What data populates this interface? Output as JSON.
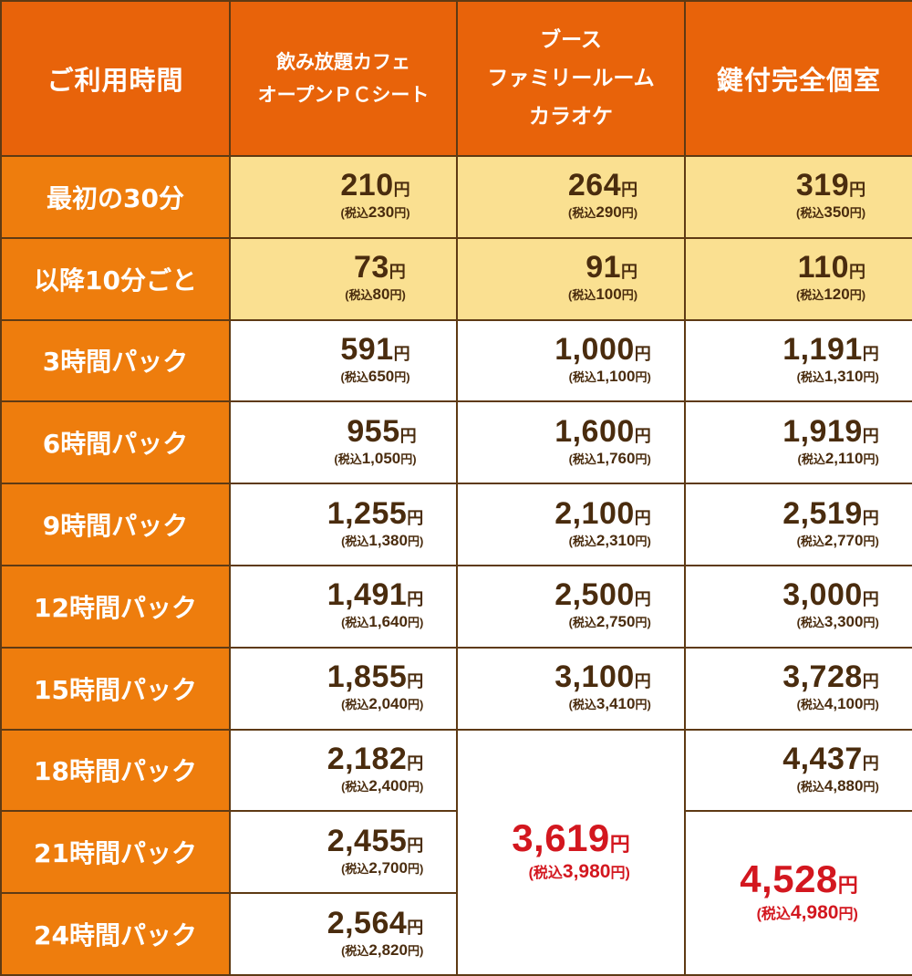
{
  "headers": {
    "time": "ご利用時間",
    "col1": [
      "飲み放題カフェ",
      "オープンＰＣシート"
    ],
    "col2": [
      "ブース",
      "ファミリールーム",
      "カラオケ"
    ],
    "col3": "鍵付完全個室"
  },
  "yen": "円",
  "tax_prefix": "(税込",
  "tax_suffix": "円)",
  "rows": [
    {
      "label": "最初の30分",
      "c1": [
        "210",
        "230"
      ],
      "c2": [
        "264",
        "290"
      ],
      "c3": [
        "319",
        "350"
      ]
    },
    {
      "label": "以降10分ごと",
      "c1": [
        "73",
        "80"
      ],
      "c2": [
        "91",
        "100"
      ],
      "c3": [
        "110",
        "120"
      ]
    },
    {
      "label": "3時間パック",
      "c1": [
        "591",
        "650"
      ],
      "c2": [
        "1,000",
        "1,100"
      ],
      "c3": [
        "1,191",
        "1,310"
      ]
    },
    {
      "label": "6時間パック",
      "c1": [
        "955",
        "1,050"
      ],
      "c2": [
        "1,600",
        "1,760"
      ],
      "c3": [
        "1,919",
        "2,110"
      ]
    },
    {
      "label": "9時間パック",
      "c1": [
        "1,255",
        "1,380"
      ],
      "c2": [
        "2,100",
        "2,310"
      ],
      "c3": [
        "2,519",
        "2,770"
      ]
    },
    {
      "label": "12時間パック",
      "c1": [
        "1,491",
        "1,640"
      ],
      "c2": [
        "2,500",
        "2,750"
      ],
      "c3": [
        "3,000",
        "3,300"
      ]
    },
    {
      "label": "15時間パック",
      "c1": [
        "1,855",
        "2,040"
      ],
      "c2": [
        "3,100",
        "3,410"
      ],
      "c3": [
        "3,728",
        "4,100"
      ]
    },
    {
      "label": "18時間パック",
      "c1": [
        "2,182",
        "2,400"
      ],
      "c3": [
        "4,437",
        "4,880"
      ]
    },
    {
      "label": "21時間パック",
      "c1": [
        "2,455",
        "2,700"
      ]
    },
    {
      "label": "24時間パック",
      "c1": [
        "2,564",
        "2,820"
      ]
    }
  ],
  "merged": {
    "booth_18_24": [
      "3,619",
      "3,980"
    ],
    "private_21_24": [
      "4,528",
      "4,980"
    ]
  },
  "colors": {
    "header": "#e8630a",
    "row_label": "#ee7d0d",
    "highlight": "#fae091",
    "text": "#4a2c0e",
    "accent": "#d3171f",
    "border": "#5e3a14"
  }
}
